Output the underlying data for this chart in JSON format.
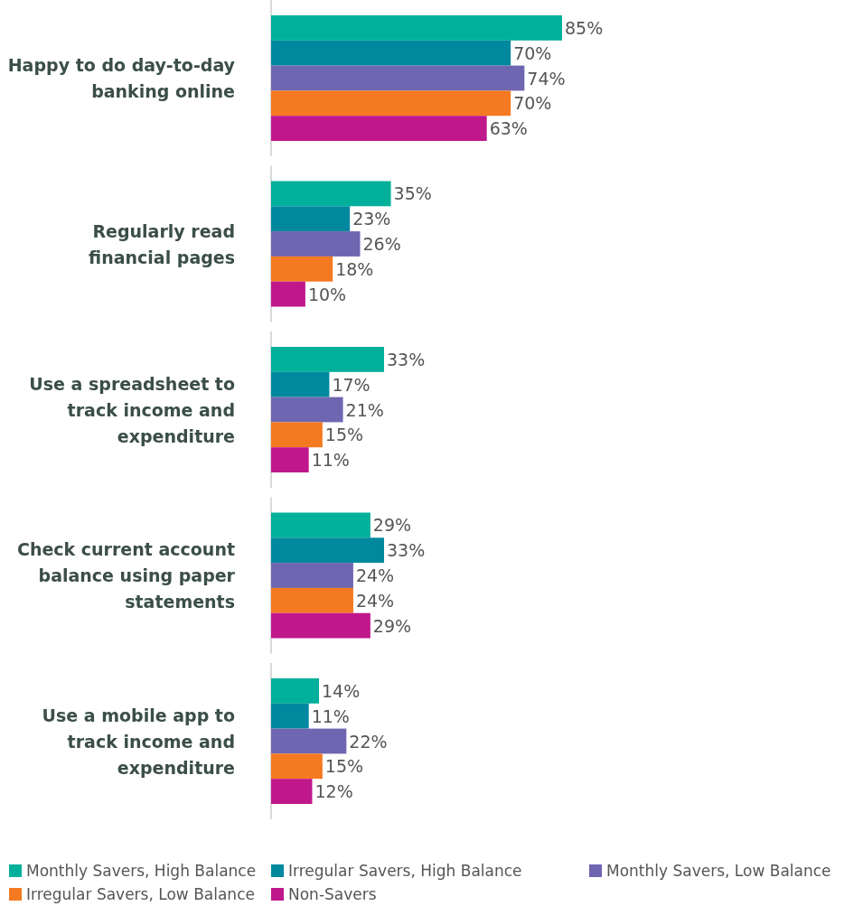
{
  "chart_data": {
    "type": "bar",
    "orientation": "horizontal",
    "categories": [
      "Happy to do day-to-day banking online",
      "Regularly read financial pages",
      "Use a spreadsheet to track income and expenditure",
      "Check current account balance using paper statements",
      "Use a mobile app to track income and expenditure"
    ],
    "series": [
      {
        "name": "Monthly Savers, High Balance",
        "color": "#00b09b",
        "values": [
          85,
          35,
          33,
          29,
          14
        ],
        "value_labels": [
          "85%",
          "35%",
          "33%",
          "29%",
          "14%"
        ]
      },
      {
        "name": "Irregular Savers, High Balance",
        "color": "#00889f",
        "values": [
          70,
          23,
          17,
          33,
          11
        ],
        "value_labels": [
          "70%",
          "23%",
          "17%",
          "33%",
          "11%"
        ]
      },
      {
        "name": "Monthly Savers, Low Balance",
        "color": "#6e66b0",
        "values": [
          74,
          26,
          21,
          24,
          22
        ],
        "value_labels": [
          "74%",
          "26%",
          "21%",
          "24%",
          "22%"
        ]
      },
      {
        "name": "Irregular Savers, Low Balance",
        "color": "#f47920",
        "values": [
          70,
          18,
          15,
          24,
          15
        ],
        "value_labels": [
          "70%",
          "18%",
          "15%",
          "24%",
          "15%"
        ]
      },
      {
        "name": "Non-Savers",
        "color": "#c0178b",
        "values": [
          63,
          10,
          11,
          29,
          12
        ],
        "value_labels": [
          "63%",
          "10%",
          "11%",
          "29%",
          "12%"
        ]
      }
    ],
    "legend": "bottom",
    "tick_labels": "y"
  }
}
